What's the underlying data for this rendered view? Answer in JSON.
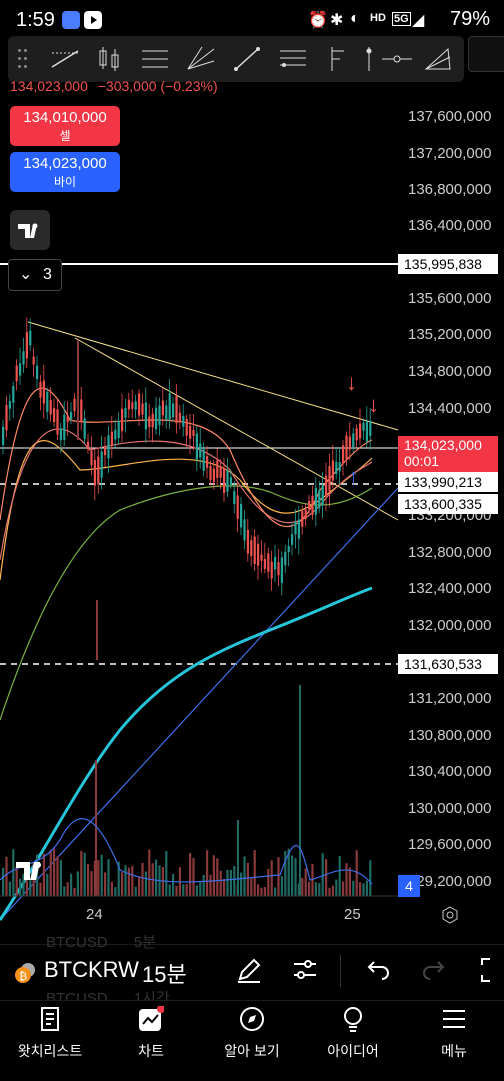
{
  "status_bar": {
    "time": "1:59",
    "network_label": "HD",
    "signal_label": "5G",
    "battery": "79%"
  },
  "chart": {
    "pnl_line": "134,023,000",
    "pnl_change": "−303,000 (−0.23%)",
    "sell_price": "134,010,000",
    "sell_label": "셀",
    "buy_price": "134,023,000",
    "buy_label": "바이",
    "indicator_count": "3",
    "volume_badge": "4",
    "countdown": "00:01",
    "price_axis": [
      "137,600,000",
      "137,200,000",
      "136,800,000",
      "136,400,000",
      "135,600,000",
      "135,200,000",
      "134,800,000",
      "134,400,000",
      "133,200,000",
      "132,800,000",
      "132,400,000",
      "132,000,000",
      "131,200,000",
      "130,800,000",
      "130,400,000",
      "130,000,000",
      "129,600,000",
      "129,200,000"
    ],
    "tags": {
      "line_high": "135,995,838",
      "current": "134,023,000",
      "ma1": "133,990,213",
      "ma2": "133,600,335",
      "line_low": "131,630,533"
    },
    "time_axis": [
      "24",
      "25"
    ],
    "colors": {
      "up": "#26a69a",
      "down": "#ef5350",
      "ma_teal": "#26c6da",
      "trend": "#f5e08a"
    }
  },
  "symbol_bar": {
    "symbol": "BTCKRW",
    "interval": "15분",
    "ghost_top_symbol": "BTCUSD",
    "ghost_top_interval": "5분",
    "ghost_bottom_symbol": "BTCUSD",
    "ghost_bottom_interval": "1시간"
  },
  "nav": [
    {
      "label": "왓치리스트"
    },
    {
      "label": "차트"
    },
    {
      "label": "알아 보기"
    },
    {
      "label": "아이디어"
    },
    {
      "label": "메뉴"
    }
  ]
}
